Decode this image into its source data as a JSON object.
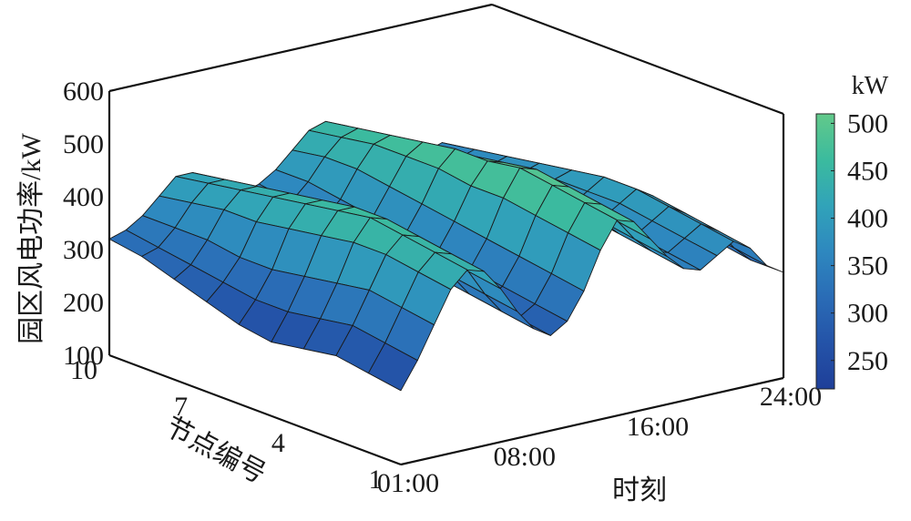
{
  "chart_data": {
    "type": "surface3d",
    "title": "",
    "zlabel": "园区风电功率/kW",
    "xlabel": "时刻",
    "ylabel": "节点编号",
    "zlim": [
      100,
      600
    ],
    "z_ticks": [
      "100",
      "200",
      "300",
      "400",
      "500",
      "600"
    ],
    "x_ticks": [
      "01:00",
      "08:00",
      "16:00",
      "24:00"
    ],
    "y_ticks": [
      "1",
      "4",
      "7",
      "10"
    ],
    "colorbar": {
      "unit": "kW",
      "range": [
        220,
        510
      ],
      "ticks": [
        "250",
        "300",
        "350",
        "400",
        "450",
        "500"
      ],
      "colormap": [
        "#1f3f99",
        "#2453a8",
        "#2a6cb6",
        "#2e88bf",
        "#31a3b9",
        "#3bbb9e",
        "#62c98a"
      ]
    },
    "times": [
      "01:00",
      "02:00",
      "03:00",
      "04:00",
      "05:00",
      "06:00",
      "07:00",
      "08:00",
      "09:00",
      "10:00",
      "11:00",
      "12:00",
      "13:00",
      "14:00",
      "15:00",
      "16:00",
      "17:00",
      "18:00",
      "19:00",
      "20:00",
      "21:00",
      "22:00",
      "23:00",
      "24:00"
    ],
    "nodes": [
      1,
      2,
      3,
      4,
      5,
      6,
      7,
      8,
      9,
      10
    ],
    "power_kw": [
      [
        240,
        290,
        350,
        410,
        440,
        430,
        390,
        340,
        300,
        280,
        300,
        350,
        420,
        470,
        460,
        420,
        380,
        350,
        340,
        360,
        380,
        360,
        320,
        300
      ],
      [
        250,
        300,
        360,
        420,
        450,
        440,
        400,
        350,
        310,
        290,
        310,
        360,
        430,
        480,
        470,
        430,
        390,
        360,
        350,
        370,
        390,
        370,
        330,
        300
      ],
      [
        260,
        310,
        370,
        430,
        460,
        450,
        410,
        360,
        320,
        300,
        320,
        370,
        440,
        490,
        480,
        440,
        400,
        370,
        360,
        380,
        400,
        380,
        340,
        310
      ],
      [
        250,
        300,
        360,
        430,
        470,
        460,
        420,
        370,
        330,
        310,
        330,
        380,
        450,
        500,
        490,
        450,
        410,
        380,
        370,
        390,
        410,
        390,
        350,
        320
      ],
      [
        240,
        290,
        350,
        420,
        460,
        460,
        420,
        380,
        340,
        320,
        340,
        390,
        450,
        490,
        480,
        440,
        400,
        380,
        370,
        390,
        410,
        390,
        350,
        320
      ],
      [
        250,
        290,
        340,
        410,
        450,
        450,
        410,
        370,
        340,
        330,
        350,
        400,
        460,
        490,
        470,
        430,
        390,
        370,
        370,
        390,
        400,
        380,
        340,
        310
      ],
      [
        270,
        300,
        340,
        400,
        440,
        440,
        400,
        360,
        330,
        330,
        360,
        410,
        460,
        480,
        460,
        420,
        380,
        360,
        360,
        380,
        390,
        370,
        330,
        300
      ],
      [
        290,
        310,
        350,
        400,
        430,
        430,
        390,
        350,
        330,
        340,
        370,
        420,
        460,
        470,
        450,
        410,
        370,
        350,
        350,
        370,
        380,
        360,
        320,
        290
      ],
      [
        310,
        320,
        350,
        390,
        420,
        420,
        380,
        350,
        340,
        350,
        380,
        420,
        450,
        460,
        440,
        400,
        360,
        340,
        340,
        360,
        370,
        350,
        310,
        280
      ],
      [
        320,
        330,
        350,
        380,
        410,
        410,
        380,
        360,
        350,
        360,
        380,
        410,
        440,
        450,
        430,
        390,
        350,
        330,
        330,
        350,
        360,
        340,
        300,
        270
      ]
    ]
  }
}
